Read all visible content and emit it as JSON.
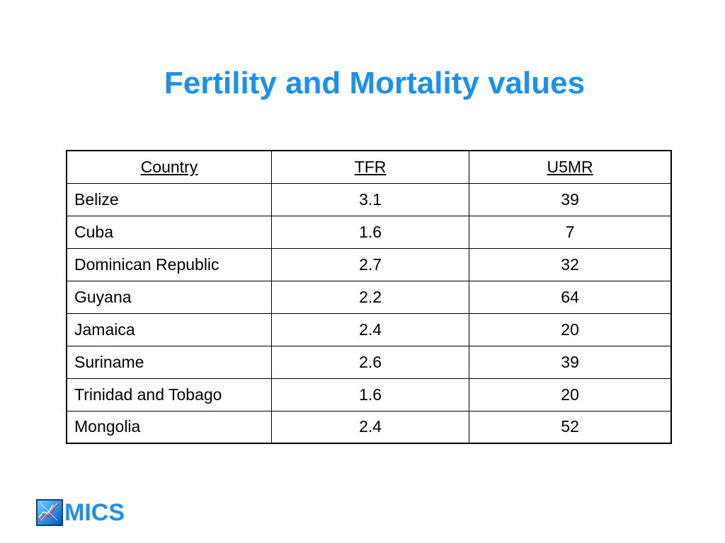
{
  "slide": {
    "title": "Fertility and Mortality values"
  },
  "table": {
    "headers": {
      "country": "Country",
      "tfr": "TFR",
      "u5mr": "U5MR"
    },
    "rows": [
      {
        "country": "Belize",
        "tfr": "3.1",
        "u5mr": "39"
      },
      {
        "country": "Cuba",
        "tfr": "1.6",
        "u5mr": "7"
      },
      {
        "country": "Dominican Republic",
        "tfr": "2.7",
        "u5mr": "32"
      },
      {
        "country": "Guyana",
        "tfr": "2.2",
        "u5mr": "64"
      },
      {
        "country": "Jamaica",
        "tfr": "2.4",
        "u5mr": "20"
      },
      {
        "country": "Suriname",
        "tfr": "2.6",
        "u5mr": "39"
      },
      {
        "country": "Trinidad and Tobago",
        "tfr": "1.6",
        "u5mr": "20"
      },
      {
        "country": "Mongolia",
        "tfr": "2.4",
        "u5mr": "52"
      }
    ]
  },
  "logo": {
    "text": "MICS",
    "icon": "mics-logo-icon"
  },
  "colors": {
    "accent": "#1a90f0",
    "text": "#000000",
    "border": "#000000"
  }
}
